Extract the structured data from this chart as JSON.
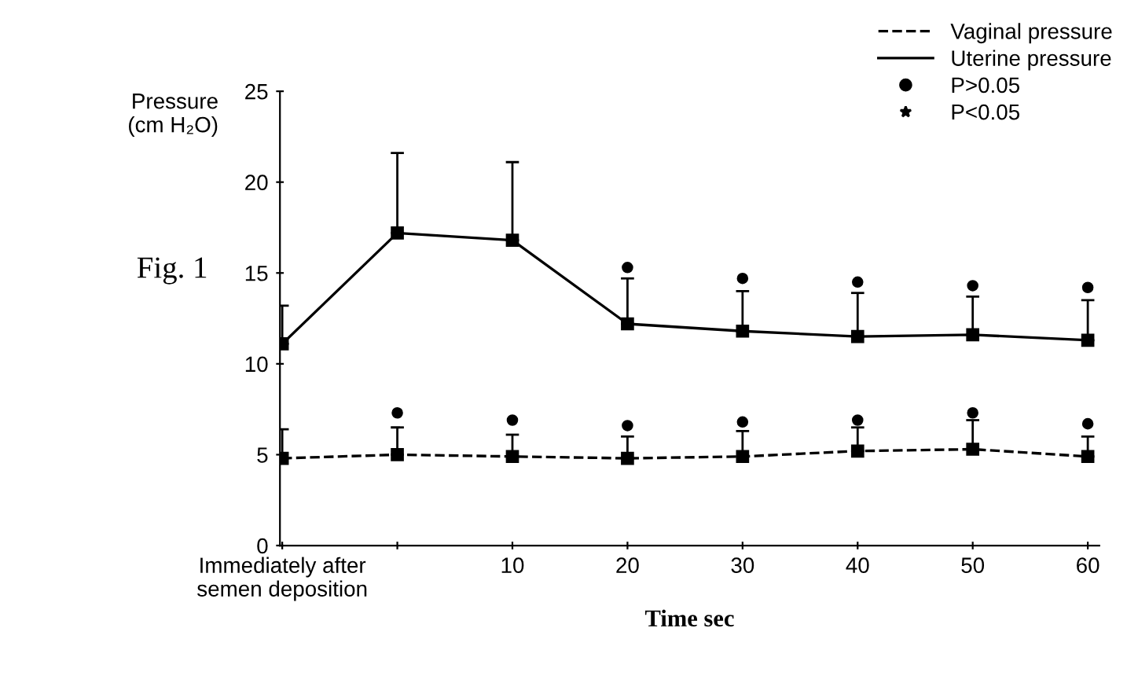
{
  "chart_data": {
    "type": "line",
    "xlabel": "Time sec",
    "ylabel": "Pressure\n(cm H₂O)",
    "categories": [
      "Immediately after\nsemen deposition",
      null,
      "10",
      "20",
      "30",
      "40",
      "50",
      "60"
    ],
    "series": [
      {
        "name": "Vaginal pressure",
        "color": "#000000",
        "line_style": "dashed",
        "marker": "square",
        "values": [
          4.8,
          5.0,
          4.9,
          4.8,
          4.9,
          5.2,
          5.3,
          4.9
        ],
        "errors": [
          [
            4.8,
            6.4
          ],
          [
            5.0,
            6.5
          ],
          [
            4.9,
            6.1
          ],
          [
            4.8,
            6.0
          ],
          [
            4.9,
            6.3
          ],
          [
            5.2,
            6.5
          ],
          [
            5.3,
            6.9
          ],
          [
            4.9,
            6.0
          ]
        ]
      },
      {
        "name": "Uterine pressure",
        "color": "#000000",
        "line_style": "solid",
        "marker": "square",
        "values": [
          11.1,
          17.2,
          16.8,
          12.2,
          11.8,
          11.5,
          11.6,
          11.3
        ],
        "errors": [
          [
            11.1,
            13.2
          ],
          [
            17.2,
            21.6
          ],
          [
            16.8,
            21.1
          ],
          [
            12.2,
            14.7
          ],
          [
            11.8,
            14.0
          ],
          [
            11.5,
            13.9
          ],
          [
            11.6,
            13.7
          ],
          [
            11.3,
            13.5
          ]
        ]
      },
      {
        "name": "P>0.05",
        "type": "scatter",
        "color": "#000000",
        "marker": "circle",
        "values": [
          null,
          7.3,
          6.9,
          6.6,
          6.8,
          6.9,
          7.3,
          6.7
        ]
      },
      {
        "type": "scatter",
        "color": "#000000",
        "marker": "circle",
        "values": [
          null,
          null,
          null,
          15.3,
          14.7,
          14.5,
          14.3,
          14.2
        ]
      },
      {
        "name": "P<0.05",
        "type": "scatter",
        "color": "#000000",
        "marker": "star",
        "values": [
          null,
          null,
          null,
          null,
          null,
          null,
          null,
          null
        ]
      }
    ],
    "ylim": [
      0,
      25
    ],
    "yticks": [
      0,
      5,
      10,
      15,
      20,
      25
    ],
    "grid": false,
    "legend": "top right",
    "annotations": [
      "Fig. 1"
    ]
  }
}
